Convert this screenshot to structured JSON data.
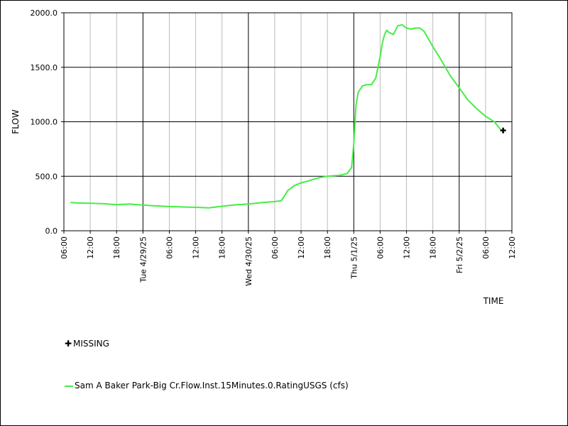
{
  "chart_data": {
    "type": "line",
    "ylabel": "FLOW",
    "xlabel": "TIME",
    "ylim": [
      0,
      2000
    ],
    "y_ticks": [
      "0.0",
      "500.0",
      "1000.0",
      "1500.0",
      "2000.0"
    ],
    "x_range_hours": [
      0,
      102
    ],
    "x_ticks": [
      {
        "label": "06:00",
        "major": false
      },
      {
        "label": "12:00",
        "major": false
      },
      {
        "label": "18:00",
        "major": false
      },
      {
        "label": "Tue 4/29/25",
        "major": true
      },
      {
        "label": "06:00",
        "major": false
      },
      {
        "label": "12:00",
        "major": false
      },
      {
        "label": "18:00",
        "major": false
      },
      {
        "label": "Wed 4/30/25",
        "major": true
      },
      {
        "label": "06:00",
        "major": false
      },
      {
        "label": "12:00",
        "major": false
      },
      {
        "label": "18:00",
        "major": false
      },
      {
        "label": "Thu 5/1/25",
        "major": true
      },
      {
        "label": "06:00",
        "major": false
      },
      {
        "label": "12:00",
        "major": false
      },
      {
        "label": "18:00",
        "major": false
      },
      {
        "label": "Fri 5/2/25",
        "major": true
      },
      {
        "label": "06:00",
        "major": false
      },
      {
        "label": "12:00",
        "major": false
      }
    ],
    "grid": true,
    "series": [
      {
        "name": "Sam A Baker Park-Big Cr.Flow.Inst.15Minutes.0.RatingUSGS (cfs)",
        "color": "#44ee44",
        "x": [
          1.5,
          3,
          6,
          9,
          12,
          15,
          18,
          21,
          24,
          27,
          30,
          33,
          36,
          39,
          42,
          45,
          48,
          49.5,
          51,
          52.5,
          54,
          55.5,
          57,
          58.5,
          60,
          61.5,
          63,
          64.5,
          65.5,
          66,
          66.5,
          67,
          68,
          69,
          70,
          71,
          72,
          72.5,
          73,
          73.5,
          74,
          75,
          76,
          77,
          78,
          79,
          80,
          81,
          82,
          84,
          86,
          88,
          90,
          92,
          94,
          96,
          98,
          99.5
        ],
        "y": [
          260,
          255,
          252,
          248,
          240,
          245,
          235,
          228,
          222,
          218,
          215,
          210,
          225,
          238,
          245,
          258,
          268,
          275,
          370,
          415,
          440,
          455,
          475,
          490,
          500,
          505,
          510,
          525,
          580,
          800,
          1150,
          1270,
          1330,
          1340,
          1340,
          1400,
          1600,
          1720,
          1800,
          1840,
          1820,
          1800,
          1880,
          1890,
          1860,
          1850,
          1860,
          1860,
          1830,
          1690,
          1560,
          1420,
          1310,
          1200,
          1120,
          1050,
          1000,
          925
        ]
      }
    ],
    "missing": {
      "label": "MISSING",
      "points": [
        {
          "x": 100,
          "y": 920
        }
      ]
    }
  }
}
